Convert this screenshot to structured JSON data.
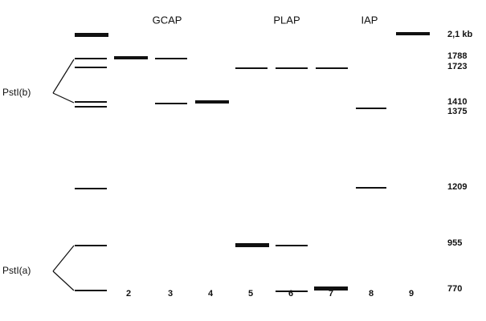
{
  "groups": [
    "GCAP",
    "PLAP",
    "IAP"
  ],
  "lane_numbers": [
    "2",
    "3",
    "4",
    "5",
    "6",
    "7",
    "8",
    "9"
  ],
  "size_labels": [
    "2,1 kb",
    "1788",
    "1723",
    "1410",
    "1375",
    "1209",
    "955",
    "770"
  ],
  "left_labels": [
    "PstI(b)",
    "PstI(a)"
  ]
}
